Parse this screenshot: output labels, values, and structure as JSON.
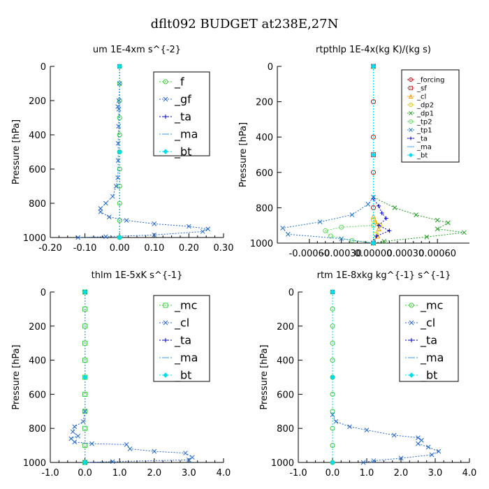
{
  "figure": {
    "title": "dflt092  BUDGET at238E,27N"
  },
  "chart_data": [
    {
      "type": "line",
      "title": "um  1E-4xm s^{-2}",
      "xlabel": "",
      "ylabel": "Pressure [hPa]",
      "xlim": [
        -0.2,
        0.3
      ],
      "ylim": [
        1000,
        0
      ],
      "xticks": [
        "-0.20",
        "-0.10",
        "0.00",
        "0.10",
        "0.20",
        "0.30"
      ],
      "xtick_values": [
        -0.2,
        -0.1,
        0.0,
        0.1,
        0.2,
        0.3
      ],
      "yticks": [
        "0",
        "200",
        "400",
        "600",
        "800",
        "1000"
      ],
      "ytick_values": [
        0,
        200,
        400,
        600,
        800,
        1000
      ],
      "legend": {
        "placement": "top-right",
        "fontsize": "large"
      },
      "series": [
        {
          "name": "_f",
          "color": "#33cc33",
          "marker": "circle",
          "points": [
            [
              0,
              0
            ],
            [
              0,
              100
            ],
            [
              0,
              200
            ],
            [
              0,
              300
            ],
            [
              0,
              400
            ],
            [
              0,
              500
            ],
            [
              0,
              600
            ],
            [
              0,
              700
            ],
            [
              0,
              800
            ],
            [
              0,
              900
            ],
            [
              0,
              1000
            ]
          ]
        },
        {
          "name": "_gf",
          "color": "#2266cc",
          "marker": "cross",
          "points": [
            [
              0,
              0
            ],
            [
              0,
              100
            ],
            [
              -0.002,
              200
            ],
            [
              -0.005,
              235
            ],
            [
              -0.002,
              250
            ],
            [
              -0.003,
              350
            ],
            [
              -0.004,
              450
            ],
            [
              -0.004,
              550
            ],
            [
              -0.005,
              650
            ],
            [
              -0.01,
              700
            ],
            [
              -0.02,
              760
            ],
            [
              -0.04,
              800
            ],
            [
              -0.055,
              830
            ],
            [
              -0.055,
              850
            ],
            [
              -0.03,
              880
            ],
            [
              0.02,
              900
            ],
            [
              0.1,
              920
            ],
            [
              0.2,
              935
            ],
            [
              0.255,
              950
            ],
            [
              0.24,
              965
            ],
            [
              0.1,
              985
            ],
            [
              -0.04,
              995
            ],
            [
              -0.12,
              1000
            ]
          ]
        },
        {
          "name": "_ta",
          "color": "#0000cc",
          "marker": "plus",
          "points": [
            [
              0,
              0
            ],
            [
              0,
              500
            ],
            [
              0,
              1000
            ]
          ]
        },
        {
          "name": "_ma",
          "color": "#3399ff",
          "marker": "dash",
          "points": [
            [
              0,
              0
            ],
            [
              0,
              500
            ],
            [
              0,
              1000
            ]
          ]
        },
        {
          "name": "_bt",
          "color": "#00ddee",
          "marker": "diamond",
          "points": [
            [
              0,
              0
            ],
            [
              0,
              500
            ],
            [
              0,
              1000
            ]
          ]
        }
      ]
    },
    {
      "type": "line",
      "title": "rtpthlp  1E-4x(kg K)/(kg s)",
      "xlabel": "",
      "ylabel": "Pressure [hPa]",
      "xlim": [
        -0.0009,
        0.0009
      ],
      "ylim": [
        1000,
        0
      ],
      "xticks": [
        "-0.00060",
        "-0.00030",
        "0.00000",
        "0.00030",
        "0.00060"
      ],
      "xtick_values": [
        -0.0006,
        -0.0003,
        0.0,
        0.0003,
        0.0006
      ],
      "yticks": [
        "0",
        "200",
        "400",
        "600",
        "800",
        "1000"
      ],
      "ytick_values": [
        0,
        200,
        400,
        600,
        800,
        1000
      ],
      "legend": {
        "placement": "top-right",
        "fontsize": "small"
      },
      "series": [
        {
          "name": "_forcing",
          "color": "#cc0000",
          "marker": "circle",
          "points": [
            [
              0,
              0
            ],
            [
              0,
              200
            ],
            [
              0,
              400
            ],
            [
              0,
              600
            ],
            [
              0,
              800
            ],
            [
              0,
              1000
            ]
          ]
        },
        {
          "name": "_sf",
          "color": "#cc3333",
          "marker": "square",
          "points": [
            [
              0,
              0
            ],
            [
              0,
              500
            ],
            [
              0,
              1000
            ]
          ]
        },
        {
          "name": "_cl",
          "color": "#ff9900",
          "marker": "triangle",
          "points": [
            [
              0,
              0
            ],
            [
              0,
              850
            ],
            [
              2e-05,
              880
            ],
            [
              5e-05,
              920
            ],
            [
              4e-05,
              960
            ],
            [
              0,
              1000
            ]
          ]
        },
        {
          "name": "_dp2",
          "color": "#ddcc00",
          "marker": "circle",
          "points": [
            [
              0,
              0
            ],
            [
              0,
              870
            ],
            [
              6e-05,
              900
            ],
            [
              2e-05,
              950
            ],
            [
              0,
              1000
            ]
          ]
        },
        {
          "name": "_dp1",
          "color": "#229922",
          "marker": "cross",
          "points": [
            [
              0,
              0
            ],
            [
              0,
              740
            ],
            [
              0.0002,
              800
            ],
            [
              0.0004,
              840
            ],
            [
              0.0006,
              870
            ],
            [
              0.0007,
              885
            ],
            [
              0.0006,
              920
            ],
            [
              0.00085,
              940
            ],
            [
              0.0005,
              965
            ],
            [
              0.0001,
              990
            ],
            [
              0,
              1000
            ]
          ]
        },
        {
          "name": "_tp2",
          "color": "#55dd55",
          "marker": "circle",
          "points": [
            [
              0,
              0
            ],
            [
              0,
              900
            ],
            [
              -0.0003,
              910
            ],
            [
              -0.00045,
              930
            ],
            [
              -0.0004,
              960
            ],
            [
              -0.0002,
              985
            ],
            [
              0,
              1000
            ]
          ]
        },
        {
          "name": "_tp1",
          "color": "#2277cc",
          "marker": "cross",
          "points": [
            [
              0,
              0
            ],
            [
              0,
              740
            ],
            [
              -5e-05,
              780
            ],
            [
              -0.0002,
              840
            ],
            [
              -0.0005,
              880
            ],
            [
              -0.00085,
              915
            ],
            [
              -0.0008,
              950
            ],
            [
              -0.0003,
              975
            ],
            [
              0,
              1000
            ]
          ]
        },
        {
          "name": "_ta",
          "color": "#0000cc",
          "marker": "plus",
          "points": [
            [
              0,
              0
            ],
            [
              0,
              750
            ],
            [
              5e-05,
              790
            ],
            [
              8e-05,
              830
            ],
            [
              0.00012,
              860
            ],
            [
              5e-05,
              900
            ],
            [
              0.00015,
              930
            ],
            [
              3e-05,
              960
            ],
            [
              0,
              1000
            ]
          ]
        },
        {
          "name": "_ma",
          "color": "#3399ff",
          "marker": "dash",
          "points": [
            [
              0,
              0
            ],
            [
              0,
              500
            ],
            [
              0,
              1000
            ]
          ]
        },
        {
          "name": "_bt",
          "color": "#00ddee",
          "marker": "diamond",
          "points": [
            [
              0,
              0
            ],
            [
              0,
              500
            ],
            [
              0,
              1000
            ]
          ]
        }
      ]
    },
    {
      "type": "line",
      "title": "thlm  1E-5xK s^{-1}",
      "xlabel": "",
      "ylabel": "Pressure [hPa]",
      "xlim": [
        -1.0,
        4.0
      ],
      "ylim": [
        1000,
        0
      ],
      "xticks": [
        "-1.0",
        "0.0",
        "1.0",
        "2.0",
        "3.0",
        "4.0"
      ],
      "xtick_values": [
        -1.0,
        0.0,
        1.0,
        2.0,
        3.0,
        4.0
      ],
      "yticks": [
        "0",
        "200",
        "400",
        "600",
        "800",
        "1000"
      ],
      "ytick_values": [
        0,
        200,
        400,
        600,
        800,
        1000
      ],
      "legend": {
        "placement": "top-right",
        "fontsize": "large"
      },
      "series": [
        {
          "name": "_mc",
          "color": "#33cc33",
          "marker": "square",
          "points": [
            [
              0,
              0
            ],
            [
              0,
              100
            ],
            [
              0,
              200
            ],
            [
              0,
              300
            ],
            [
              0,
              400
            ],
            [
              0,
              500
            ],
            [
              0,
              600
            ],
            [
              0,
              700
            ],
            [
              0,
              800
            ],
            [
              0,
              900
            ],
            [
              0,
              1000
            ]
          ]
        },
        {
          "name": "_cl",
          "color": "#2266cc",
          "marker": "cross",
          "points": [
            [
              0,
              0
            ],
            [
              0,
              700
            ],
            [
              -0.05,
              760
            ],
            [
              -0.3,
              790
            ],
            [
              -0.35,
              820
            ],
            [
              -0.2,
              845
            ],
            [
              -0.4,
              860
            ],
            [
              -0.3,
              880
            ],
            [
              0.2,
              890
            ],
            [
              1.2,
              895
            ],
            [
              1.3,
              920
            ],
            [
              2.0,
              935
            ],
            [
              2.9,
              945
            ],
            [
              3.1,
              970
            ],
            [
              3.0,
              985
            ],
            [
              0.8,
              995
            ],
            [
              0,
              1000
            ]
          ]
        },
        {
          "name": "_ta",
          "color": "#0000cc",
          "marker": "plus",
          "points": [
            [
              0,
              0
            ],
            [
              0,
              500
            ],
            [
              0,
              1000
            ]
          ]
        },
        {
          "name": "_ma",
          "color": "#3399ff",
          "marker": "dash",
          "points": [
            [
              0,
              0
            ],
            [
              0,
              500
            ],
            [
              0,
              1000
            ]
          ]
        },
        {
          "name": "_bt",
          "color": "#00ddee",
          "marker": "diamond",
          "points": [
            [
              0,
              0
            ],
            [
              0,
              500
            ],
            [
              0,
              1000
            ]
          ]
        }
      ]
    },
    {
      "type": "line",
      "title": "rtm  1E-8xkg kg^{-1} s^{-1}",
      "xlabel": "",
      "ylabel": "Pressure [hPa]",
      "xlim": [
        -1.0,
        4.0
      ],
      "ylim": [
        1000,
        0
      ],
      "xticks": [
        "-1.0",
        "0.0",
        "1.0",
        "2.0",
        "3.0",
        "4.0"
      ],
      "xtick_values": [
        -1.0,
        0.0,
        1.0,
        2.0,
        3.0,
        4.0
      ],
      "yticks": [
        "0",
        "200",
        "400",
        "600",
        "800",
        "1000"
      ],
      "ytick_values": [
        0,
        200,
        400,
        600,
        800,
        1000
      ],
      "legend": {
        "placement": "top-right",
        "fontsize": "large"
      },
      "series": [
        {
          "name": "_mc",
          "color": "#33cc33",
          "marker": "circle",
          "points": [
            [
              0,
              0
            ],
            [
              0,
              100
            ],
            [
              0,
              200
            ],
            [
              0,
              300
            ],
            [
              0,
              400
            ],
            [
              0,
              500
            ],
            [
              0,
              600
            ],
            [
              0,
              700
            ],
            [
              0,
              800
            ],
            [
              0,
              900
            ],
            [
              0,
              1000
            ]
          ]
        },
        {
          "name": "_cl",
          "color": "#2266cc",
          "marker": "cross",
          "points": [
            [
              0,
              0
            ],
            [
              0,
              720
            ],
            [
              0.1,
              760
            ],
            [
              0.5,
              790
            ],
            [
              1.0,
              810
            ],
            [
              1.8,
              840
            ],
            [
              2.5,
              855
            ],
            [
              2.6,
              870
            ],
            [
              2.5,
              890
            ],
            [
              2.8,
              910
            ],
            [
              3.1,
              935
            ],
            [
              2.9,
              955
            ],
            [
              2.0,
              975
            ],
            [
              1.2,
              990
            ],
            [
              0.9,
              1000
            ]
          ]
        },
        {
          "name": "_ta",
          "color": "#0000cc",
          "marker": "plus",
          "points": [
            [
              0,
              0
            ],
            [
              0,
              500
            ],
            [
              0,
              1000
            ]
          ]
        },
        {
          "name": "_ma",
          "color": "#3399ff",
          "marker": "dash",
          "points": [
            [
              0,
              0
            ],
            [
              0,
              500
            ],
            [
              0,
              1000
            ]
          ]
        },
        {
          "name": "_bt",
          "color": "#00ddee",
          "marker": "diamond",
          "points": [
            [
              0,
              0
            ],
            [
              0,
              500
            ],
            [
              0,
              1000
            ]
          ]
        }
      ]
    }
  ]
}
